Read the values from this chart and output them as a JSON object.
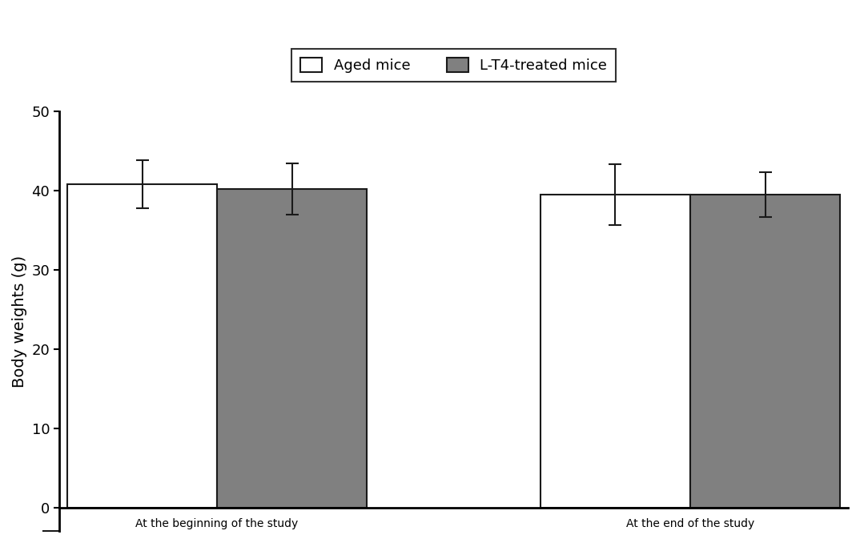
{
  "groups": [
    "At the beginning of the study",
    "At the end of the study"
  ],
  "series": [
    "Aged mice",
    "L-T4-treated mice"
  ],
  "values": [
    [
      40.8,
      40.2
    ],
    [
      39.5,
      39.5
    ]
  ],
  "errors": [
    [
      3.0,
      3.2
    ],
    [
      3.8,
      2.8
    ]
  ],
  "bar_colors": [
    "#ffffff",
    "#808080"
  ],
  "bar_edgecolor": "#1a1a1a",
  "ylabel": "Body weights (g)",
  "ylim": [
    -5,
    52
  ],
  "yticks": [
    0,
    10,
    20,
    30,
    40,
    50
  ],
  "legend_labels": [
    "Aged mice",
    "L-T4-treated mice"
  ],
  "bar_width": 0.38,
  "capsize": 6,
  "background_color": "#ffffff",
  "legend_edgecolor": "#000000",
  "tick_fontsize": 13,
  "label_fontsize": 14,
  "legend_fontsize": 13,
  "group_positions": [
    0.4,
    1.6
  ],
  "xlim": [
    0.0,
    2.0
  ]
}
